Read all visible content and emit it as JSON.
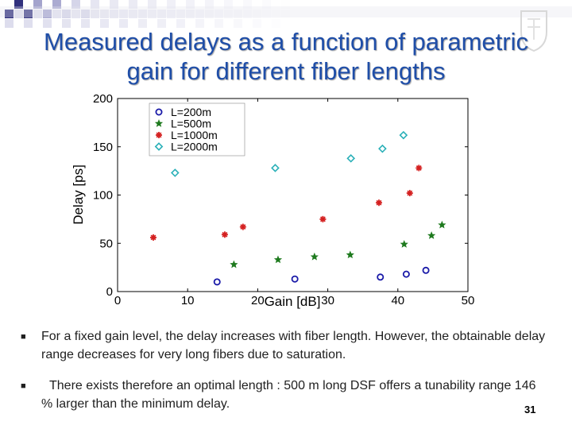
{
  "title_line1": "Measured delays as a function of parametric",
  "title_line2": "gain for different fiber lengths",
  "bullets": [
    {
      "icon": "square-bullet-icon",
      "text": "For a fixed gain level, the delay increases with fiber length. However, the obtainable delay range decreases for very long fibers due to saturation."
    },
    {
      "icon": "square-bullet-icon",
      "text": "There exists therefore an optimal length : 500 m long DSF offers a tunability range 146 % larger than the minimum delay."
    }
  ],
  "page_number": "31",
  "chart_data": {
    "type": "scatter",
    "xlabel": "Gain [dB]",
    "ylabel": "Delay [ps]",
    "xlim": [
      0,
      50
    ],
    "ylim": [
      0,
      200
    ],
    "xticks": [
      "0",
      "10",
      "20",
      "30",
      "40",
      "50"
    ],
    "yticks": [
      "0",
      "50",
      "100",
      "150",
      "200"
    ],
    "grid": false,
    "legend_position": "top-left",
    "series": [
      {
        "name": "L=200m",
        "marker": "circle",
        "color": "#1a1aa8",
        "x": [
          14.2,
          25.3,
          37.5,
          41.2,
          44.0
        ],
        "y": [
          10,
          13,
          15,
          18,
          22
        ]
      },
      {
        "name": "L=500m",
        "marker": "star",
        "color": "#1e7a1e",
        "x": [
          16.6,
          22.9,
          28.1,
          33.2,
          40.9,
          44.8,
          46.3
        ],
        "y": [
          28,
          33,
          36,
          38,
          49,
          58,
          69
        ]
      },
      {
        "name": "L=1000m",
        "marker": "asterisk",
        "color": "#d42020",
        "x": [
          5.1,
          15.3,
          17.9,
          29.3,
          37.3,
          41.7,
          43.0
        ],
        "y": [
          56,
          59,
          67,
          75,
          92,
          102,
          128
        ]
      },
      {
        "name": "L=2000m",
        "marker": "diamond",
        "color": "#2ab0b8",
        "x": [
          8.2,
          22.5,
          33.3,
          37.8,
          40.8
        ],
        "y": [
          123,
          128,
          138,
          148,
          162
        ]
      }
    ]
  }
}
